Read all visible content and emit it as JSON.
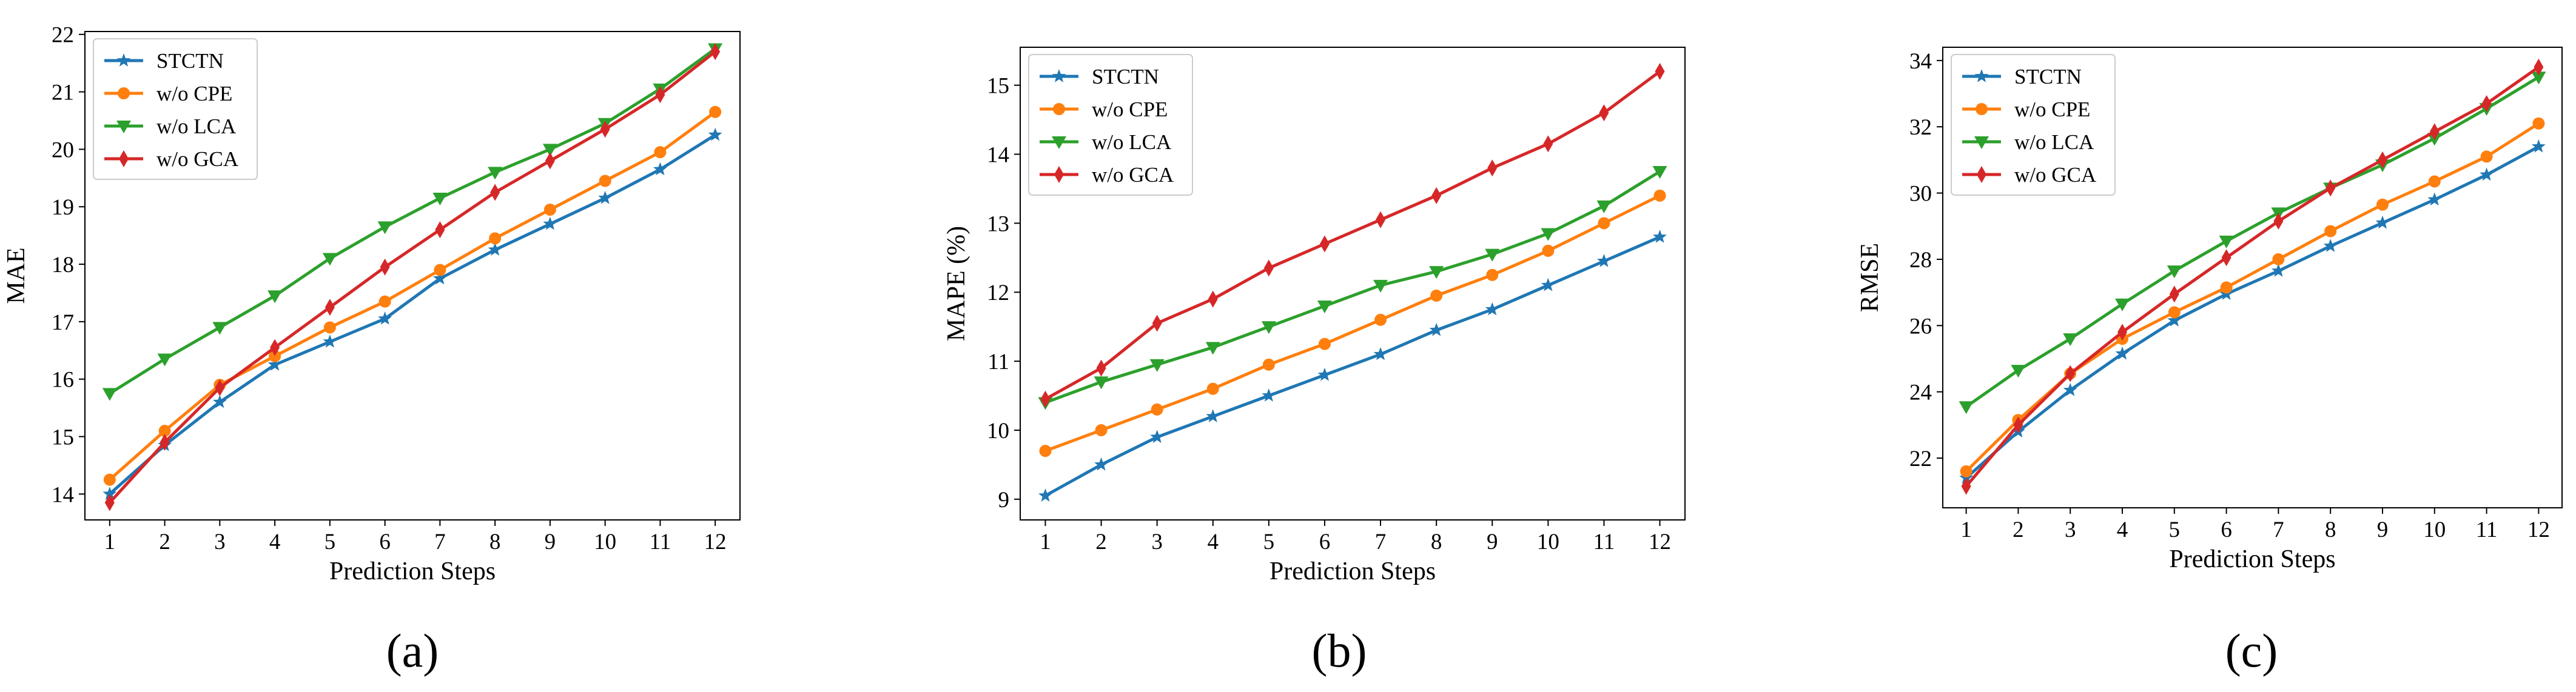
{
  "chart_data": [
    {
      "type": "line",
      "panel_label": "(a)",
      "xlabel": "Prediction Steps",
      "ylabel": "MAE",
      "x": [
        1,
        2,
        3,
        4,
        5,
        6,
        7,
        8,
        9,
        10,
        11,
        12
      ],
      "xlim": [
        0.55,
        12.45
      ],
      "ylim": [
        13.55,
        22.05
      ],
      "yticks": [
        14,
        15,
        16,
        17,
        18,
        19,
        20,
        21,
        22
      ],
      "legend_position": "top-left",
      "series": [
        {
          "name": "STCTN",
          "color": "#1f77b4",
          "marker": "star",
          "values": [
            14.0,
            14.85,
            15.6,
            16.25,
            16.65,
            17.05,
            17.75,
            18.25,
            18.7,
            19.15,
            19.65,
            20.25
          ]
        },
        {
          "name": "w/o CPE",
          "color": "#ff7f0e",
          "marker": "circle",
          "values": [
            14.25,
            15.1,
            15.9,
            16.4,
            16.9,
            17.35,
            17.9,
            18.45,
            18.95,
            19.45,
            19.95,
            20.65
          ]
        },
        {
          "name": "w/o LCA",
          "color": "#2ca02c",
          "marker": "triangle-down",
          "values": [
            15.75,
            16.35,
            16.9,
            17.45,
            18.1,
            18.65,
            19.15,
            19.6,
            20.0,
            20.45,
            21.05,
            21.75
          ]
        },
        {
          "name": "w/o GCA",
          "color": "#d62728",
          "marker": "diamond",
          "values": [
            13.85,
            14.9,
            15.85,
            16.55,
            17.25,
            17.95,
            18.6,
            19.25,
            19.8,
            20.35,
            20.95,
            21.7
          ]
        }
      ]
    },
    {
      "type": "line",
      "panel_label": "(b)",
      "xlabel": "Prediction Steps",
      "ylabel": "MAPE (%)",
      "x": [
        1,
        2,
        3,
        4,
        5,
        6,
        7,
        8,
        9,
        10,
        11,
        12
      ],
      "xlim": [
        0.55,
        12.45
      ],
      "ylim": [
        8.7,
        15.55
      ],
      "yticks": [
        9,
        10,
        11,
        12,
        13,
        14,
        15
      ],
      "legend_position": "top-left",
      "series": [
        {
          "name": "STCTN",
          "color": "#1f77b4",
          "marker": "star",
          "values": [
            9.05,
            9.5,
            9.9,
            10.2,
            10.5,
            10.8,
            11.1,
            11.45,
            11.75,
            12.1,
            12.45,
            12.8
          ]
        },
        {
          "name": "w/o CPE",
          "color": "#ff7f0e",
          "marker": "circle",
          "values": [
            9.7,
            10.0,
            10.3,
            10.6,
            10.95,
            11.25,
            11.6,
            11.95,
            12.25,
            12.6,
            13.0,
            13.4
          ]
        },
        {
          "name": "w/o LCA",
          "color": "#2ca02c",
          "marker": "triangle-down",
          "values": [
            10.4,
            10.7,
            10.95,
            11.2,
            11.5,
            11.8,
            12.1,
            12.3,
            12.55,
            12.85,
            13.25,
            13.75
          ]
        },
        {
          "name": "w/o GCA",
          "color": "#d62728",
          "marker": "diamond",
          "values": [
            10.45,
            10.9,
            11.55,
            11.9,
            12.35,
            12.7,
            13.05,
            13.4,
            13.8,
            14.15,
            14.6,
            15.2
          ]
        }
      ]
    },
    {
      "type": "line",
      "panel_label": "(c)",
      "xlabel": "Prediction Steps",
      "ylabel": "RMSE",
      "x": [
        1,
        2,
        3,
        4,
        5,
        6,
        7,
        8,
        9,
        10,
        11,
        12
      ],
      "xlim": [
        0.55,
        12.45
      ],
      "ylim": [
        20.5,
        34.4
      ],
      "yticks": [
        22,
        24,
        26,
        28,
        30,
        32,
        34
      ],
      "legend_position": "top-left",
      "series": [
        {
          "name": "STCTN",
          "color": "#1f77b4",
          "marker": "star",
          "values": [
            21.4,
            22.8,
            24.05,
            25.15,
            26.15,
            26.95,
            27.65,
            28.4,
            29.1,
            29.8,
            30.55,
            31.4
          ]
        },
        {
          "name": "w/o CPE",
          "color": "#ff7f0e",
          "marker": "circle",
          "values": [
            21.6,
            23.15,
            24.55,
            25.6,
            26.4,
            27.15,
            28.0,
            28.85,
            29.65,
            30.35,
            31.1,
            32.1
          ]
        },
        {
          "name": "w/o LCA",
          "color": "#2ca02c",
          "marker": "triangle-down",
          "values": [
            23.55,
            24.65,
            25.6,
            26.65,
            27.65,
            28.55,
            29.4,
            30.15,
            30.85,
            31.65,
            32.55,
            33.5
          ]
        },
        {
          "name": "w/o GCA",
          "color": "#d62728",
          "marker": "diamond",
          "values": [
            21.15,
            23.0,
            24.55,
            25.8,
            26.95,
            28.05,
            29.15,
            30.15,
            31.0,
            31.85,
            32.7,
            33.8
          ]
        }
      ]
    }
  ]
}
